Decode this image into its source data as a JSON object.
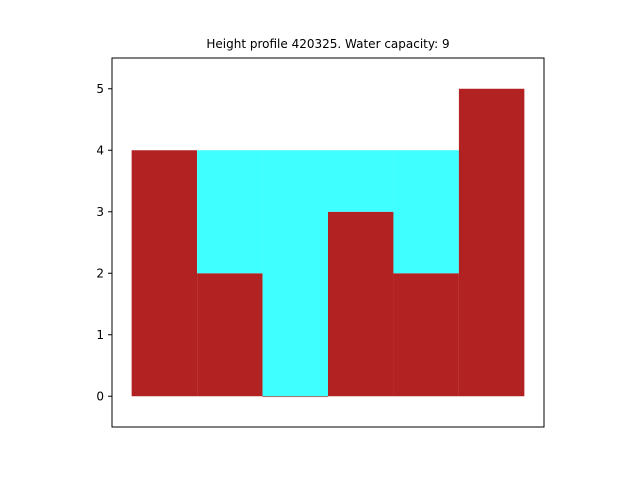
{
  "chart_data": {
    "type": "bar",
    "title": "Height profile 420325. Water capacity: 9",
    "heights": [
      4,
      2,
      0,
      3,
      2,
      5
    ],
    "water": [
      0,
      2,
      4,
      1,
      2,
      0
    ],
    "ylim": [
      -0.5,
      5.5
    ],
    "yticks": [
      "0",
      "1",
      "2",
      "3",
      "4",
      "5"
    ],
    "xlabel": "",
    "ylabel": "",
    "grid": false,
    "x_ticks_visible": false,
    "colors": {
      "ground": "#b22222",
      "water": "#40ffff",
      "axes": "#000000"
    }
  }
}
